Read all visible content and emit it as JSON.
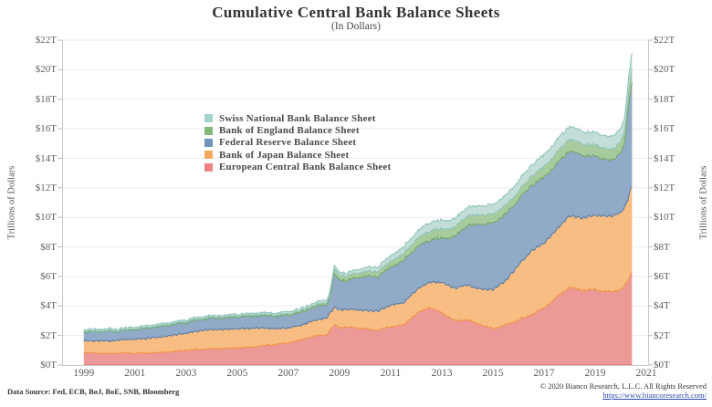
{
  "title": "Cumulative Central Bank Balance Sheets",
  "subtitle": "(In Dollars)",
  "footer": {
    "source": "Data Source: Fed, ECB, BoJ, BoE, SNB, Bloomberg",
    "copyright": "© 2020 Bianco Research, L.L.C. All Rights Reserved",
    "link": "https://www.biancoresearch.com/"
  },
  "chart_data": {
    "type": "area",
    "stacked": true,
    "title": "Cumulative Central Bank Balance Sheets (In Dollars)",
    "ylabel_left": "Trillions of Dollars",
    "ylabel_right": "Trillions of Dollars",
    "units": "trillions of US dollars",
    "ylim": [
      0,
      22
    ],
    "xlim": [
      1998.15,
      2021.07
    ],
    "grid": "horizontal",
    "legend_position": "inside-upper-left",
    "y_ticks": [
      {
        "value": 0,
        "label": "$0T"
      },
      {
        "value": 2,
        "label": "$2T"
      },
      {
        "value": 4,
        "label": "$4T"
      },
      {
        "value": 6,
        "label": "$6T"
      },
      {
        "value": 8,
        "label": "$8T"
      },
      {
        "value": 10,
        "label": "$10T"
      },
      {
        "value": 12,
        "label": "$12T"
      },
      {
        "value": 14,
        "label": "$14T"
      },
      {
        "value": 16,
        "label": "$16T"
      },
      {
        "value": 18,
        "label": "$18T"
      },
      {
        "value": 20,
        "label": "$20T"
      },
      {
        "value": 22,
        "label": "$22T"
      }
    ],
    "x_ticks": [
      {
        "value": 1999,
        "label": "1999"
      },
      {
        "value": 2001,
        "label": "2001"
      },
      {
        "value": 2003,
        "label": "2003"
      },
      {
        "value": 2005,
        "label": "2005"
      },
      {
        "value": 2007,
        "label": "2007"
      },
      {
        "value": 2009,
        "label": "2009"
      },
      {
        "value": 2011,
        "label": "2011"
      },
      {
        "value": 2013,
        "label": "2013"
      },
      {
        "value": 2015,
        "label": "2015"
      },
      {
        "value": 2017,
        "label": "2017"
      },
      {
        "value": 2019,
        "label": "2019"
      },
      {
        "value": 2021,
        "label": "2021"
      }
    ],
    "series": [
      {
        "name": "ecb",
        "label": "European Central Bank Balance Sheet",
        "fill": "#EC9A97",
        "line": "#E2635E",
        "legend_color": "#ED8383",
        "points": [
          [
            1999,
            0.85
          ],
          [
            1999.5,
            0.8
          ],
          [
            2000,
            0.78
          ],
          [
            2000.5,
            0.8
          ],
          [
            2001,
            0.8
          ],
          [
            2001.5,
            0.82
          ],
          [
            2002,
            0.86
          ],
          [
            2002.5,
            0.92
          ],
          [
            2003,
            1.0
          ],
          [
            2003.5,
            1.05
          ],
          [
            2004,
            1.1
          ],
          [
            2004.5,
            1.12
          ],
          [
            2005,
            1.15
          ],
          [
            2005.5,
            1.2
          ],
          [
            2006,
            1.3
          ],
          [
            2006.5,
            1.4
          ],
          [
            2007,
            1.5
          ],
          [
            2007.5,
            1.7
          ],
          [
            2008,
            1.95
          ],
          [
            2008.5,
            2.05
          ],
          [
            2008.8,
            2.7
          ],
          [
            2009,
            2.55
          ],
          [
            2009.5,
            2.55
          ],
          [
            2010,
            2.45
          ],
          [
            2010.5,
            2.35
          ],
          [
            2011,
            2.6
          ],
          [
            2011.5,
            2.7
          ],
          [
            2012,
            3.45
          ],
          [
            2012.5,
            3.9
          ],
          [
            2013,
            3.55
          ],
          [
            2013.5,
            3.0
          ],
          [
            2014,
            3.05
          ],
          [
            2014.5,
            2.75
          ],
          [
            2015,
            2.45
          ],
          [
            2015.5,
            2.7
          ],
          [
            2016,
            3.05
          ],
          [
            2016.5,
            3.4
          ],
          [
            2017,
            3.85
          ],
          [
            2017.5,
            4.6
          ],
          [
            2018,
            5.25
          ],
          [
            2018.5,
            5.05
          ],
          [
            2019,
            5.1
          ],
          [
            2019.3,
            5.0
          ],
          [
            2019.6,
            4.95
          ],
          [
            2020,
            5.1
          ],
          [
            2020.2,
            5.45
          ],
          [
            2020.45,
            6.3
          ]
        ]
      },
      {
        "name": "boj",
        "label": "Bank of Japan Balance Sheet",
        "fill": "#F7BD83",
        "line": "#F0913E",
        "legend_color": "#F5A95F",
        "points": [
          [
            1999,
            0.8
          ],
          [
            1999.5,
            0.82
          ],
          [
            2000,
            0.85
          ],
          [
            2000.5,
            0.9
          ],
          [
            2001,
            0.95
          ],
          [
            2001.5,
            1.0
          ],
          [
            2002,
            1.05
          ],
          [
            2002.5,
            1.1
          ],
          [
            2003,
            1.15
          ],
          [
            2003.5,
            1.25
          ],
          [
            2004,
            1.3
          ],
          [
            2004.5,
            1.3
          ],
          [
            2005,
            1.3
          ],
          [
            2005.5,
            1.28
          ],
          [
            2006,
            1.2
          ],
          [
            2006.5,
            1.05
          ],
          [
            2007,
            1.0
          ],
          [
            2007.5,
            1.0
          ],
          [
            2008,
            1.05
          ],
          [
            2008.8,
            1.2
          ],
          [
            2009,
            1.2
          ],
          [
            2009.5,
            1.22
          ],
          [
            2010,
            1.25
          ],
          [
            2010.5,
            1.3
          ],
          [
            2011,
            1.45
          ],
          [
            2011.5,
            1.5
          ],
          [
            2012,
            1.6
          ],
          [
            2012.5,
            1.7
          ],
          [
            2013,
            2.05
          ],
          [
            2013.5,
            2.2
          ],
          [
            2014,
            2.35
          ],
          [
            2014.5,
            2.4
          ],
          [
            2015,
            2.65
          ],
          [
            2015.5,
            3.0
          ],
          [
            2016,
            3.7
          ],
          [
            2016.5,
            4.3
          ],
          [
            2017,
            4.4
          ],
          [
            2017.5,
            4.6
          ],
          [
            2018,
            4.85
          ],
          [
            2018.5,
            4.9
          ],
          [
            2019,
            5.05
          ],
          [
            2019.5,
            5.1
          ],
          [
            2020,
            5.2
          ],
          [
            2020.2,
            5.4
          ],
          [
            2020.45,
            5.9
          ]
        ]
      },
      {
        "name": "fed",
        "label": "Federal Reserve Balance Sheet",
        "fill": "#90AAC7",
        "line": "#56799F",
        "legend_color": "#7093BD",
        "points": [
          [
            1999,
            0.6
          ],
          [
            1999.8,
            0.62
          ],
          [
            2000,
            0.7
          ],
          [
            2000.1,
            0.62
          ],
          [
            2000.5,
            0.61
          ],
          [
            2001,
            0.64
          ],
          [
            2001.7,
            0.68
          ],
          [
            2002,
            0.7
          ],
          [
            2003,
            0.73
          ],
          [
            2004,
            0.77
          ],
          [
            2005,
            0.8
          ],
          [
            2006,
            0.83
          ],
          [
            2007,
            0.87
          ],
          [
            2008,
            0.9
          ],
          [
            2008.6,
            0.95
          ],
          [
            2008.8,
            2.25
          ],
          [
            2009,
            2.05
          ],
          [
            2009.3,
            1.95
          ],
          [
            2009.5,
            2.1
          ],
          [
            2010,
            2.3
          ],
          [
            2010.5,
            2.35
          ],
          [
            2011,
            2.55
          ],
          [
            2011.5,
            2.85
          ],
          [
            2012,
            2.9
          ],
          [
            2012.5,
            2.85
          ],
          [
            2013,
            3.0
          ],
          [
            2013.5,
            3.45
          ],
          [
            2014,
            4.05
          ],
          [
            2014.5,
            4.4
          ],
          [
            2015,
            4.5
          ],
          [
            2015.5,
            4.5
          ],
          [
            2016,
            4.45
          ],
          [
            2016.5,
            4.45
          ],
          [
            2017,
            4.45
          ],
          [
            2017.5,
            4.45
          ],
          [
            2018,
            4.4
          ],
          [
            2018.5,
            4.25
          ],
          [
            2019,
            4.0
          ],
          [
            2019.5,
            3.8
          ],
          [
            2019.7,
            3.75
          ],
          [
            2020,
            4.15
          ],
          [
            2020.15,
            4.3
          ],
          [
            2020.3,
            6.1
          ],
          [
            2020.45,
            7.1
          ]
        ]
      },
      {
        "name": "boe",
        "label": "Bank of England Balance Sheet",
        "fill": "#A8CB9E",
        "line": "#74A765",
        "legend_color": "#83B878",
        "points": [
          [
            1999,
            0.05
          ],
          [
            2000,
            0.05
          ],
          [
            2001,
            0.06
          ],
          [
            2002,
            0.06
          ],
          [
            2003,
            0.06
          ],
          [
            2004,
            0.07
          ],
          [
            2005,
            0.07
          ],
          [
            2006,
            0.08
          ],
          [
            2007,
            0.1
          ],
          [
            2008,
            0.12
          ],
          [
            2008.6,
            0.15
          ],
          [
            2008.8,
            0.35
          ],
          [
            2009,
            0.3
          ],
          [
            2009.5,
            0.3
          ],
          [
            2010,
            0.32
          ],
          [
            2010.5,
            0.35
          ],
          [
            2011,
            0.4
          ],
          [
            2011.5,
            0.45
          ],
          [
            2012,
            0.55
          ],
          [
            2012.5,
            0.62
          ],
          [
            2013,
            0.62
          ],
          [
            2013.5,
            0.62
          ],
          [
            2014,
            0.65
          ],
          [
            2014.5,
            0.64
          ],
          [
            2015,
            0.6
          ],
          [
            2015.5,
            0.6
          ],
          [
            2016,
            0.55
          ],
          [
            2016.5,
            0.62
          ],
          [
            2017,
            0.72
          ],
          [
            2017.5,
            0.76
          ],
          [
            2018,
            0.8
          ],
          [
            2018.5,
            0.76
          ],
          [
            2019,
            0.75
          ],
          [
            2019.5,
            0.73
          ],
          [
            2020,
            0.74
          ],
          [
            2020.2,
            0.8
          ],
          [
            2020.45,
            0.95
          ]
        ]
      },
      {
        "name": "snb",
        "label": "Swiss National Bank Balance Sheet",
        "fill": "#C3DED8",
        "line": "#8FC3B9",
        "legend_color": "#A2D2CA",
        "points": [
          [
            1999,
            0.12
          ],
          [
            2000,
            0.12
          ],
          [
            2001,
            0.12
          ],
          [
            2002,
            0.12
          ],
          [
            2003,
            0.12
          ],
          [
            2004,
            0.12
          ],
          [
            2005,
            0.12
          ],
          [
            2006,
            0.13
          ],
          [
            2007,
            0.14
          ],
          [
            2008,
            0.15
          ],
          [
            2008.8,
            0.22
          ],
          [
            2009,
            0.21
          ],
          [
            2009.5,
            0.23
          ],
          [
            2010,
            0.27
          ],
          [
            2010.5,
            0.32
          ],
          [
            2011,
            0.38
          ],
          [
            2011.5,
            0.45
          ],
          [
            2012,
            0.5
          ],
          [
            2012.5,
            0.58
          ],
          [
            2013,
            0.58
          ],
          [
            2013.5,
            0.58
          ],
          [
            2014,
            0.6
          ],
          [
            2014.5,
            0.62
          ],
          [
            2015,
            0.65
          ],
          [
            2015.5,
            0.66
          ],
          [
            2016,
            0.72
          ],
          [
            2016.5,
            0.75
          ],
          [
            2017,
            0.8
          ],
          [
            2017.5,
            0.85
          ],
          [
            2018,
            0.88
          ],
          [
            2018.5,
            0.85
          ],
          [
            2019,
            0.85
          ],
          [
            2019.5,
            0.86
          ],
          [
            2020,
            0.9
          ],
          [
            2020.2,
            0.95
          ],
          [
            2020.45,
            1.05
          ]
        ]
      }
    ]
  }
}
